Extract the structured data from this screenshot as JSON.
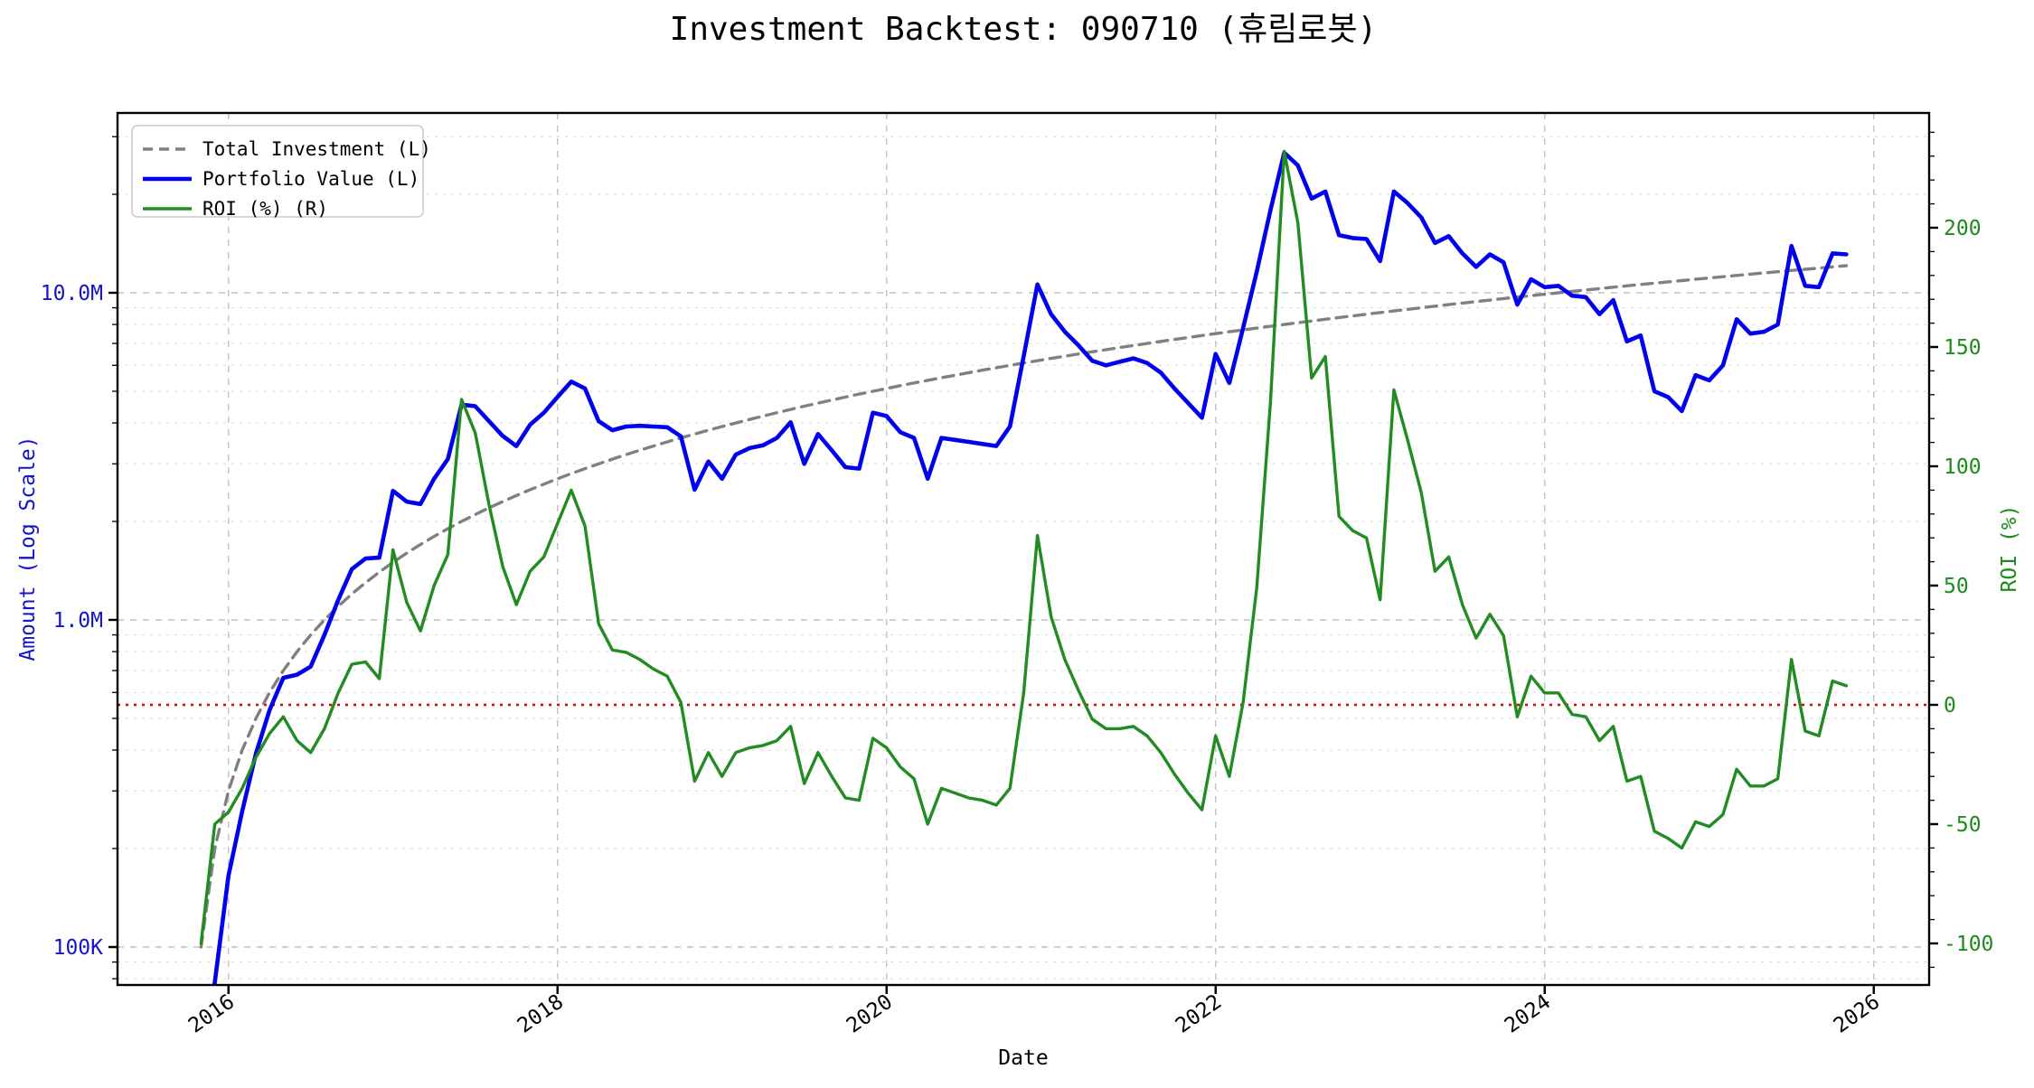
{
  "title": "Investment Backtest: 090710 (휴림로봇)",
  "colors": {
    "portfolio": "#0000EE",
    "investment": "#808080",
    "roi": "#228B22",
    "zero_line": "#DD0000",
    "left_axis_text": "#1414CC",
    "right_axis_text": "#1E8B1E",
    "grid_major": "#C2C2C2",
    "grid_minor": "#DCDCDC",
    "spine": "#000000",
    "legend_border": "#CCCCCC",
    "tick_label": "#000000"
  },
  "legend": {
    "items": [
      {
        "label": "Total Investment (L)",
        "series": "investment",
        "style": "dashed"
      },
      {
        "label": "Portfolio Value (L)",
        "series": "portfolio",
        "style": "solid"
      },
      {
        "label": "ROI (%) (R)",
        "series": "roi",
        "style": "solid"
      }
    ]
  },
  "axes": {
    "x": {
      "label": "Date",
      "ticks": [
        "2016",
        "2018",
        "2020",
        "2022",
        "2024",
        "2026"
      ]
    },
    "left": {
      "label": "Amount (Log Scale)",
      "scale": "log",
      "ticks": [
        {
          "value": 10,
          "label": "10.0M"
        },
        {
          "value": 1,
          "label": "1.0M"
        },
        {
          "value": 0.1,
          "label": "100K"
        }
      ],
      "minor_gridlines": [
        0.08,
        0.09,
        0.2,
        0.3,
        0.4,
        0.5,
        0.6,
        0.7,
        0.8,
        0.9,
        2,
        3,
        4,
        5,
        6,
        7,
        8,
        9,
        20,
        30
      ]
    },
    "right": {
      "label": "ROI (%)",
      "ticks": [
        200,
        150,
        100,
        50,
        0,
        -50,
        -100
      ],
      "zero_line_value": 0
    }
  },
  "chart_data": {
    "type": "line",
    "x_unit": "month",
    "x": [
      "2015-11",
      "2015-12",
      "2016-01",
      "2016-02",
      "2016-03",
      "2016-04",
      "2016-05",
      "2016-06",
      "2016-07",
      "2016-08",
      "2016-09",
      "2016-10",
      "2016-11",
      "2016-12",
      "2017-01",
      "2017-02",
      "2017-03",
      "2017-04",
      "2017-05",
      "2017-06",
      "2017-07",
      "2017-08",
      "2017-09",
      "2017-10",
      "2017-11",
      "2017-12",
      "2018-01",
      "2018-02",
      "2018-03",
      "2018-04",
      "2018-05",
      "2018-06",
      "2018-07",
      "2018-08",
      "2018-09",
      "2018-10",
      "2018-11",
      "2018-12",
      "2019-01",
      "2019-02",
      "2019-03",
      "2019-04",
      "2019-05",
      "2019-06",
      "2019-07",
      "2019-08",
      "2019-09",
      "2019-10",
      "2019-11",
      "2019-12",
      "2020-01",
      "2020-02",
      "2020-03",
      "2020-04",
      "2020-05",
      "2020-06",
      "2020-07",
      "2020-08",
      "2020-09",
      "2020-10",
      "2020-11",
      "2020-12",
      "2021-01",
      "2021-02",
      "2021-03",
      "2021-04",
      "2021-05",
      "2021-06",
      "2021-07",
      "2021-08",
      "2021-09",
      "2021-10",
      "2021-11",
      "2021-12",
      "2022-01",
      "2022-02",
      "2022-03",
      "2022-04",
      "2022-05",
      "2022-06",
      "2022-07",
      "2022-08",
      "2022-09",
      "2022-10",
      "2022-11",
      "2022-12",
      "2023-01",
      "2023-02",
      "2023-03",
      "2023-04",
      "2023-05",
      "2023-06",
      "2023-07",
      "2023-08",
      "2023-09",
      "2023-10",
      "2023-11",
      "2023-12",
      "2024-01",
      "2024-02",
      "2024-03",
      "2024-04",
      "2024-05",
      "2024-06",
      "2024-07",
      "2024-08",
      "2024-09",
      "2024-10",
      "2024-11",
      "2024-12",
      "2025-01",
      "2025-02",
      "2025-03",
      "2025-04",
      "2025-05",
      "2025-06",
      "2025-07",
      "2025-08",
      "2025-09",
      "2025-10",
      "2025-11"
    ],
    "series": [
      {
        "name": "Total Investment (L)",
        "axis": "left",
        "unit": "million KRW",
        "values": [
          0.1,
          0.2,
          0.3,
          0.4,
          0.5,
          0.6,
          0.7,
          0.8,
          0.9,
          1.0,
          1.1,
          1.2,
          1.3,
          1.4,
          1.5,
          1.6,
          1.7,
          1.8,
          1.9,
          2.0,
          2.1,
          2.2,
          2.3,
          2.4,
          2.5,
          2.6,
          2.7,
          2.8,
          2.9,
          3.0,
          3.1,
          3.2,
          3.3,
          3.4,
          3.5,
          3.6,
          3.7,
          3.8,
          3.9,
          4.0,
          4.1,
          4.2,
          4.3,
          4.4,
          4.5,
          4.6,
          4.7,
          4.8,
          4.9,
          5.0,
          5.1,
          5.2,
          5.3,
          5.4,
          5.5,
          5.6,
          5.7,
          5.8,
          5.9,
          6.0,
          6.1,
          6.2,
          6.3,
          6.4,
          6.5,
          6.6,
          6.7,
          6.8,
          6.9,
          7.0,
          7.1,
          7.2,
          7.3,
          7.4,
          7.5,
          7.6,
          7.7,
          7.8,
          7.9,
          8.0,
          8.1,
          8.2,
          8.3,
          8.4,
          8.5,
          8.6,
          8.7,
          8.8,
          8.9,
          9.0,
          9.1,
          9.2,
          9.3,
          9.4,
          9.5,
          9.6,
          9.7,
          9.8,
          9.9,
          10.0,
          10.1,
          10.2,
          10.3,
          10.4,
          10.5,
          10.6,
          10.7,
          10.8,
          10.9,
          11.0,
          11.1,
          11.2,
          11.3,
          11.4,
          11.5,
          11.6,
          11.7,
          11.8,
          11.9,
          12.0,
          12.1
        ]
      },
      {
        "name": "Portfolio Value (L)",
        "axis": "left",
        "unit": "million KRW",
        "values": [
          0.04,
          0.078,
          0.165,
          0.26,
          0.39,
          0.53,
          0.665,
          0.68,
          0.72,
          0.9,
          1.15,
          1.43,
          1.54,
          1.55,
          2.48,
          2.3,
          2.26,
          2.7,
          3.1,
          4.55,
          4.5,
          4.05,
          3.65,
          3.4,
          3.95,
          4.3,
          4.8,
          5.35,
          5.1,
          4.05,
          3.8,
          3.9,
          3.92,
          3.9,
          3.88,
          3.64,
          2.5,
          3.05,
          2.7,
          3.2,
          3.35,
          3.42,
          3.6,
          4.02,
          3.0,
          3.7,
          3.3,
          2.93,
          2.9,
          4.3,
          4.2,
          3.75,
          3.6,
          2.7,
          3.6,
          3.55,
          3.5,
          3.45,
          3.4,
          3.9,
          6.4,
          10.6,
          8.6,
          7.6,
          6.9,
          6.2,
          6.0,
          6.15,
          6.3,
          6.1,
          5.7,
          5.1,
          4.6,
          4.15,
          6.5,
          5.3,
          7.8,
          11.6,
          17.9,
          26.8,
          24.5,
          19.4,
          20.4,
          15.0,
          14.7,
          14.6,
          12.5,
          20.4,
          18.8,
          17.0,
          14.2,
          14.9,
          13.2,
          12.0,
          13.1,
          12.4,
          9.2,
          11.0,
          10.4,
          10.5,
          9.8,
          9.7,
          8.6,
          9.5,
          7.1,
          7.4,
          5.0,
          4.8,
          4.35,
          5.6,
          5.4,
          6.0,
          8.3,
          7.5,
          7.6,
          8.0,
          13.9,
          10.5,
          10.4,
          13.2,
          13.1
        ]
      },
      {
        "name": "ROI (%) (R)",
        "axis": "right",
        "unit": "%",
        "values": [
          -100,
          -50,
          -45,
          -35,
          -22,
          -12,
          -5,
          -15,
          -20,
          -10,
          5,
          17,
          18,
          11,
          65,
          43,
          31,
          50,
          63,
          128,
          114,
          84,
          58,
          42,
          56,
          62,
          76,
          90,
          75,
          34,
          23,
          22,
          19,
          15,
          12,
          1,
          -32,
          -20,
          -30,
          -20,
          -18,
          -17,
          -15,
          -9,
          -33,
          -20,
          -30,
          -39,
          -40,
          -14,
          -18,
          -26,
          -31,
          -50,
          -35,
          -37,
          -39,
          -40,
          -42,
          -35,
          5,
          71,
          37,
          19,
          6,
          -6,
          -10,
          -10,
          -9,
          -13,
          -20,
          -29,
          -37,
          -44,
          -13,
          -30,
          1,
          49,
          127,
          232,
          202,
          137,
          146,
          79,
          73,
          70,
          44,
          132,
          111,
          89,
          56,
          62,
          42,
          28,
          38,
          29,
          -5,
          12,
          5,
          5,
          -4,
          -5,
          -15,
          -9,
          -32,
          -30,
          -53,
          -56,
          -60,
          -49,
          -51,
          -46,
          -27,
          -34,
          -34,
          -31,
          19,
          -11,
          -13,
          10,
          8
        ]
      }
    ],
    "title": "Investment Backtest: 090710 (휴림로봇)",
    "xlabel": "Date",
    "ylabel_left": "Amount (Log Scale)",
    "ylabel_right": "ROI (%)",
    "left_axis_range": [
      0.075,
      33
    ],
    "right_axis_range": [
      -115,
      245
    ],
    "grid": true,
    "legend_position": "upper-left"
  }
}
